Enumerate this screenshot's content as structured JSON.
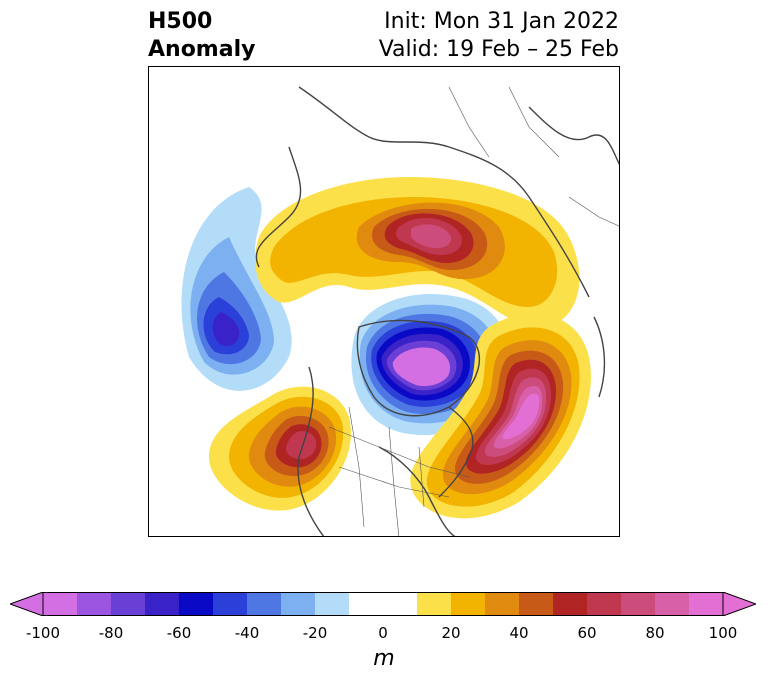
{
  "title": {
    "left_line1": "H500",
    "left_line2": "Anomaly",
    "right_line1": "Init: Mon 31 Jan 2022",
    "right_line2": "Valid: 19 Feb – 25 Feb"
  },
  "colorbar": {
    "unit": "m",
    "min": -100,
    "max": 100,
    "step": 10,
    "ticks": [
      "-100",
      "-80",
      "-60",
      "-40",
      "-20",
      "0",
      "20",
      "40",
      "60",
      "80",
      "100"
    ],
    "colors": [
      "#d36fe3",
      "#9b55e0",
      "#6a3fd6",
      "#3a22c9",
      "#0a0ac6",
      "#2a40d8",
      "#4f77e4",
      "#7cb0f0",
      "#b3dcf8",
      "#ffffff",
      "#ffffff",
      "#fce04a",
      "#f2b400",
      "#e08a10",
      "#c85a18",
      "#b02424",
      "#c03850",
      "#cc4c7c",
      "#d860a8",
      "#e46fd4"
    ],
    "extend_low_color": "#d36fe3",
    "extend_high_color": "#e46fd4"
  },
  "map": {
    "projection": "north-polar-stereographic",
    "field": "500 hPa geopotential height anomaly"
  }
}
